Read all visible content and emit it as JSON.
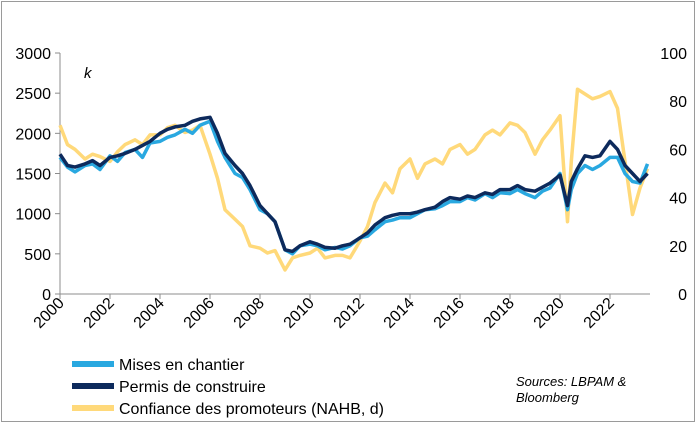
{
  "chart_data": {
    "type": "line",
    "unit_label": "k",
    "x_range": [
      2000,
      2023.6
    ],
    "x_ticks": [
      "2000",
      "2002",
      "2004",
      "2006",
      "2008",
      "2010",
      "2012",
      "2014",
      "2016",
      "2018",
      "2020",
      "2022"
    ],
    "y_left": {
      "min": 0,
      "max": 3000,
      "ticks": [
        "0",
        "500",
        "1000",
        "1500",
        "2000",
        "2500",
        "3000"
      ]
    },
    "y_right": {
      "min": 0,
      "max": 100,
      "ticks": [
        "0",
        "20",
        "40",
        "60",
        "80",
        "100"
      ]
    },
    "series": [
      {
        "name": "Confiance des promoteurs (NAHB, d)",
        "axis": "right",
        "color": "#ffd97a",
        "x": [
          2000.0,
          2000.3,
          2000.6,
          2001.0,
          2001.3,
          2001.6,
          2002.0,
          2002.3,
          2002.6,
          2003.0,
          2003.3,
          2003.6,
          2004.0,
          2004.3,
          2004.6,
          2005.0,
          2005.3,
          2005.6,
          2006.0,
          2006.3,
          2006.6,
          2007.0,
          2007.3,
          2007.6,
          2008.0,
          2008.3,
          2008.6,
          2009.0,
          2009.3,
          2009.6,
          2010.0,
          2010.3,
          2010.6,
          2011.0,
          2011.3,
          2011.6,
          2012.0,
          2012.3,
          2012.6,
          2013.0,
          2013.3,
          2013.6,
          2014.0,
          2014.3,
          2014.6,
          2015.0,
          2015.3,
          2015.6,
          2016.0,
          2016.3,
          2016.6,
          2017.0,
          2017.3,
          2017.6,
          2018.0,
          2018.3,
          2018.6,
          2019.0,
          2019.3,
          2019.6,
          2020.0,
          2020.3,
          2020.45,
          2020.7,
          2021.0,
          2021.3,
          2021.6,
          2022.0,
          2022.3,
          2022.6,
          2022.9,
          2023.2,
          2023.5
        ],
        "values": [
          70,
          62,
          60,
          56,
          58,
          57,
          55,
          59,
          62,
          64,
          62,
          66,
          66,
          69,
          70,
          67,
          68,
          70,
          58,
          48,
          35,
          31,
          28,
          20,
          19,
          17,
          18,
          10,
          15,
          16,
          17,
          19,
          15,
          16,
          16,
          15,
          22,
          28,
          38,
          46,
          42,
          52,
          56,
          48,
          54,
          56,
          54,
          60,
          62,
          58,
          60,
          66,
          68,
          66,
          71,
          70,
          67,
          58,
          64,
          68,
          74,
          30,
          55,
          85,
          83,
          81,
          82,
          84,
          77,
          55,
          33,
          44,
          52
        ]
      },
      {
        "name": "Mises en chantier",
        "axis": "left",
        "color": "#29a8e0",
        "x": [
          2000.0,
          2000.3,
          2000.6,
          2001.0,
          2001.3,
          2001.6,
          2002.0,
          2002.3,
          2002.6,
          2003.0,
          2003.3,
          2003.6,
          2004.0,
          2004.3,
          2004.6,
          2005.0,
          2005.3,
          2005.6,
          2006.0,
          2006.3,
          2006.6,
          2007.0,
          2007.3,
          2007.6,
          2008.0,
          2008.3,
          2008.6,
          2009.0,
          2009.3,
          2009.6,
          2010.0,
          2010.3,
          2010.6,
          2011.0,
          2011.3,
          2011.6,
          2012.0,
          2012.3,
          2012.6,
          2013.0,
          2013.3,
          2013.6,
          2014.0,
          2014.3,
          2014.6,
          2015.0,
          2015.3,
          2015.6,
          2016.0,
          2016.3,
          2016.6,
          2017.0,
          2017.3,
          2017.6,
          2018.0,
          2018.3,
          2018.6,
          2019.0,
          2019.3,
          2019.6,
          2020.0,
          2020.3,
          2020.45,
          2020.7,
          2021.0,
          2021.3,
          2021.6,
          2022.0,
          2022.3,
          2022.6,
          2022.9,
          2023.2,
          2023.5
        ],
        "values": [
          1700,
          1580,
          1520,
          1600,
          1620,
          1550,
          1720,
          1650,
          1760,
          1800,
          1700,
          1880,
          1900,
          1950,
          1980,
          2050,
          2000,
          2100,
          2150,
          1900,
          1700,
          1500,
          1450,
          1300,
          1050,
          1000,
          900,
          550,
          500,
          600,
          620,
          600,
          550,
          580,
          560,
          600,
          700,
          720,
          800,
          900,
          920,
          950,
          950,
          1000,
          1050,
          1060,
          1100,
          1150,
          1150,
          1200,
          1170,
          1250,
          1200,
          1260,
          1250,
          1300,
          1250,
          1200,
          1280,
          1320,
          1500,
          1050,
          1300,
          1500,
          1600,
          1550,
          1600,
          1700,
          1700,
          1500,
          1400,
          1380,
          1620
        ]
      },
      {
        "name": "Permis de construire",
        "axis": "left",
        "color": "#0d2a5c",
        "x": [
          2000.0,
          2000.3,
          2000.6,
          2001.0,
          2001.3,
          2001.6,
          2002.0,
          2002.3,
          2002.6,
          2003.0,
          2003.3,
          2003.6,
          2004.0,
          2004.3,
          2004.6,
          2005.0,
          2005.3,
          2005.6,
          2006.0,
          2006.3,
          2006.6,
          2007.0,
          2007.3,
          2007.6,
          2008.0,
          2008.3,
          2008.6,
          2009.0,
          2009.3,
          2009.6,
          2010.0,
          2010.3,
          2010.6,
          2011.0,
          2011.3,
          2011.6,
          2012.0,
          2012.3,
          2012.6,
          2013.0,
          2013.3,
          2013.6,
          2014.0,
          2014.3,
          2014.6,
          2015.0,
          2015.3,
          2015.6,
          2016.0,
          2016.3,
          2016.6,
          2017.0,
          2017.3,
          2017.6,
          2018.0,
          2018.3,
          2018.6,
          2019.0,
          2019.3,
          2019.6,
          2020.0,
          2020.3,
          2020.45,
          2020.7,
          2021.0,
          2021.3,
          2021.6,
          2022.0,
          2022.3,
          2022.6,
          2022.9,
          2023.2,
          2023.5
        ],
        "values": [
          1740,
          1600,
          1580,
          1620,
          1660,
          1600,
          1700,
          1720,
          1750,
          1800,
          1850,
          1900,
          2000,
          2050,
          2080,
          2100,
          2150,
          2180,
          2200,
          2000,
          1750,
          1600,
          1500,
          1350,
          1100,
          1000,
          900,
          550,
          530,
          600,
          650,
          620,
          580,
          570,
          600,
          620,
          700,
          760,
          860,
          950,
          980,
          1000,
          1000,
          1020,
          1050,
          1080,
          1150,
          1200,
          1180,
          1220,
          1200,
          1260,
          1240,
          1300,
          1300,
          1350,
          1300,
          1280,
          1330,
          1380,
          1480,
          1100,
          1400,
          1560,
          1720,
          1700,
          1720,
          1900,
          1800,
          1600,
          1500,
          1400,
          1500
        ]
      }
    ],
    "legend": [
      "Mises en chantier",
      "Permis de construire",
      "Confiance des promoteurs (NAHB, d)"
    ],
    "source_note": [
      "Sources: LBPAM &",
      "Bloomberg"
    ]
  }
}
